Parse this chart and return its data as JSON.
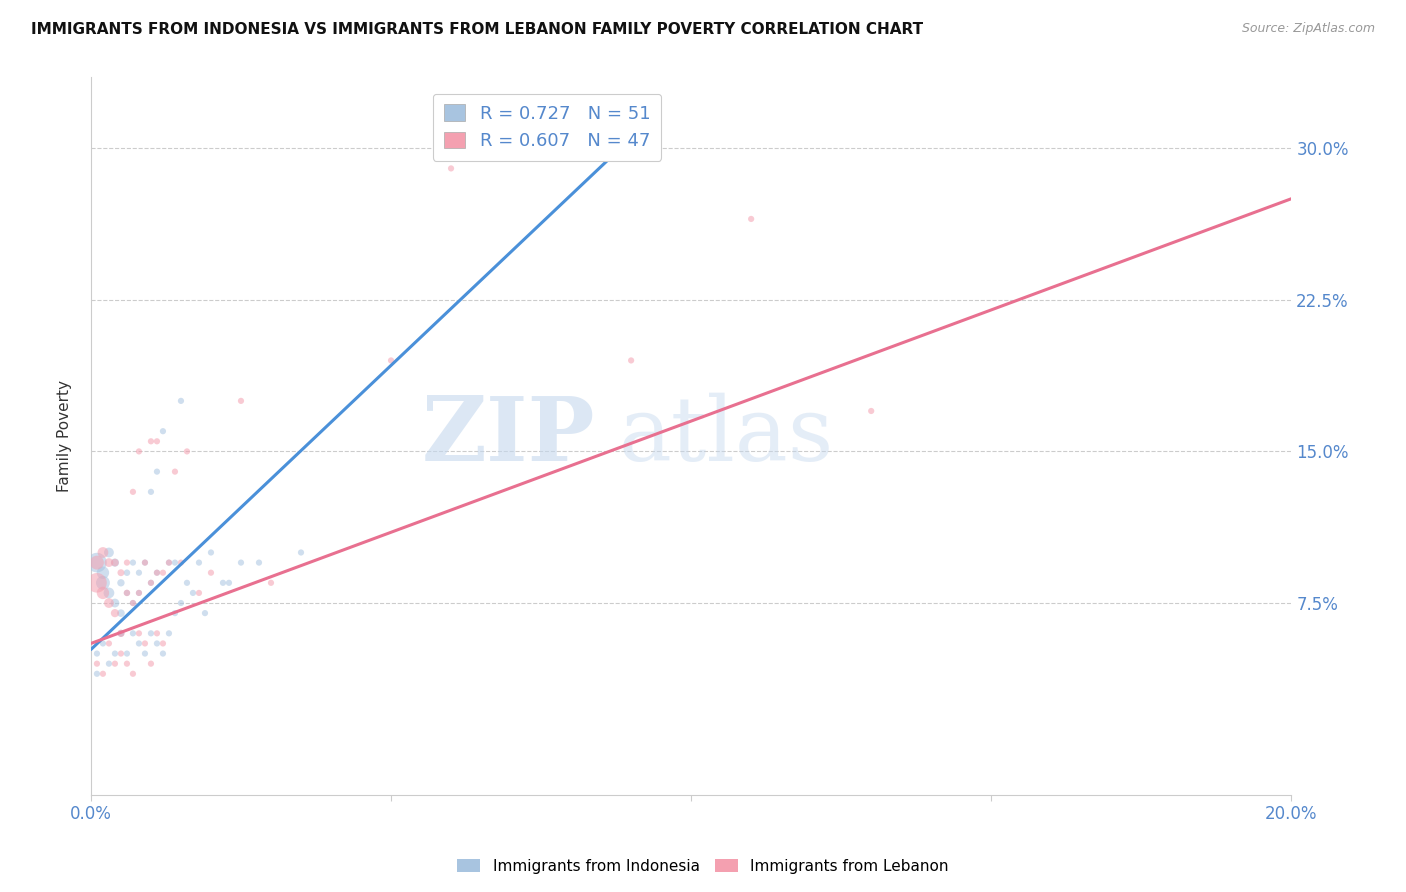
{
  "title": "IMMIGRANTS FROM INDONESIA VS IMMIGRANTS FROM LEBANON FAMILY POVERTY CORRELATION CHART",
  "source": "Source: ZipAtlas.com",
  "ylabel": "Family Poverty",
  "xlim": [
    0.0,
    0.2
  ],
  "ylim": [
    -0.02,
    0.335
  ],
  "xticks": [
    0.0,
    0.05,
    0.1,
    0.15,
    0.2
  ],
  "xtick_labels": [
    "0.0%",
    "",
    "",
    "",
    "20.0%"
  ],
  "ytick_labels": [
    "7.5%",
    "15.0%",
    "22.5%",
    "30.0%"
  ],
  "yticks": [
    0.075,
    0.15,
    0.225,
    0.3
  ],
  "r_indonesia": 0.727,
  "n_indonesia": 51,
  "r_lebanon": 0.607,
  "n_lebanon": 47,
  "indonesia_color": "#a8c4e0",
  "lebanon_color": "#f4a0b0",
  "indonesia_line_color": "#4a90d9",
  "lebanon_line_color": "#e87090",
  "legend_label_indonesia": "Immigrants from Indonesia",
  "legend_label_lebanon": "Immigrants from Lebanon",
  "watermark_zip": "ZIP",
  "watermark_atlas": "atlas",
  "background_color": "#ffffff",
  "grid_color": "#cccccc",
  "indonesia_x": [
    0.001,
    0.002,
    0.002,
    0.003,
    0.003,
    0.004,
    0.004,
    0.005,
    0.005,
    0.005,
    0.006,
    0.006,
    0.007,
    0.007,
    0.008,
    0.008,
    0.009,
    0.01,
    0.01,
    0.011,
    0.011,
    0.012,
    0.013,
    0.014,
    0.015,
    0.016,
    0.018,
    0.02,
    0.022,
    0.025,
    0.001,
    0.001,
    0.002,
    0.003,
    0.004,
    0.005,
    0.006,
    0.007,
    0.008,
    0.009,
    0.01,
    0.011,
    0.012,
    0.013,
    0.014,
    0.015,
    0.017,
    0.019,
    0.023,
    0.028,
    0.035
  ],
  "indonesia_y": [
    0.095,
    0.085,
    0.09,
    0.08,
    0.1,
    0.075,
    0.095,
    0.07,
    0.085,
    0.06,
    0.09,
    0.08,
    0.095,
    0.075,
    0.09,
    0.08,
    0.095,
    0.085,
    0.13,
    0.09,
    0.14,
    0.16,
    0.095,
    0.095,
    0.175,
    0.085,
    0.095,
    0.1,
    0.085,
    0.095,
    0.05,
    0.04,
    0.055,
    0.045,
    0.05,
    0.06,
    0.05,
    0.06,
    0.055,
    0.05,
    0.06,
    0.055,
    0.05,
    0.06,
    0.07,
    0.075,
    0.08,
    0.07,
    0.085,
    0.095,
    0.1
  ],
  "indonesia_size": [
    200,
    100,
    80,
    60,
    50,
    40,
    35,
    30,
    28,
    25,
    22,
    20,
    20,
    20,
    20,
    20,
    20,
    20,
    20,
    20,
    20,
    20,
    20,
    20,
    20,
    20,
    20,
    20,
    20,
    20,
    20,
    20,
    20,
    20,
    20,
    20,
    20,
    20,
    20,
    20,
    20,
    20,
    20,
    20,
    20,
    20,
    20,
    20,
    20,
    20,
    20
  ],
  "lebanon_x": [
    0.001,
    0.001,
    0.002,
    0.002,
    0.003,
    0.003,
    0.004,
    0.004,
    0.005,
    0.005,
    0.006,
    0.006,
    0.007,
    0.007,
    0.008,
    0.008,
    0.009,
    0.01,
    0.01,
    0.011,
    0.011,
    0.012,
    0.013,
    0.014,
    0.015,
    0.016,
    0.018,
    0.02,
    0.025,
    0.03,
    0.001,
    0.002,
    0.003,
    0.004,
    0.005,
    0.006,
    0.007,
    0.008,
    0.009,
    0.01,
    0.011,
    0.012,
    0.05,
    0.06,
    0.09,
    0.11,
    0.13
  ],
  "lebanon_y": [
    0.085,
    0.095,
    0.08,
    0.1,
    0.075,
    0.095,
    0.07,
    0.095,
    0.06,
    0.09,
    0.08,
    0.095,
    0.075,
    0.13,
    0.08,
    0.15,
    0.095,
    0.085,
    0.155,
    0.09,
    0.155,
    0.09,
    0.095,
    0.14,
    0.095,
    0.15,
    0.08,
    0.09,
    0.175,
    0.085,
    0.045,
    0.04,
    0.055,
    0.045,
    0.05,
    0.045,
    0.04,
    0.06,
    0.055,
    0.045,
    0.06,
    0.055,
    0.195,
    0.29,
    0.195,
    0.265,
    0.17
  ],
  "lebanon_size": [
    200,
    100,
    80,
    60,
    50,
    40,
    35,
    30,
    28,
    25,
    22,
    20,
    20,
    20,
    20,
    20,
    20,
    20,
    20,
    20,
    20,
    20,
    20,
    20,
    20,
    20,
    20,
    20,
    20,
    20,
    20,
    20,
    20,
    20,
    20,
    20,
    20,
    20,
    20,
    20,
    20,
    20,
    20,
    20,
    20,
    20,
    20
  ],
  "blue_line_x0": 0.0,
  "blue_line_y0": 0.052,
  "blue_line_x1": 0.09,
  "blue_line_y1": 0.305,
  "pink_line_x0": 0.0,
  "pink_line_y0": 0.055,
  "pink_line_x1": 0.2,
  "pink_line_y1": 0.275
}
